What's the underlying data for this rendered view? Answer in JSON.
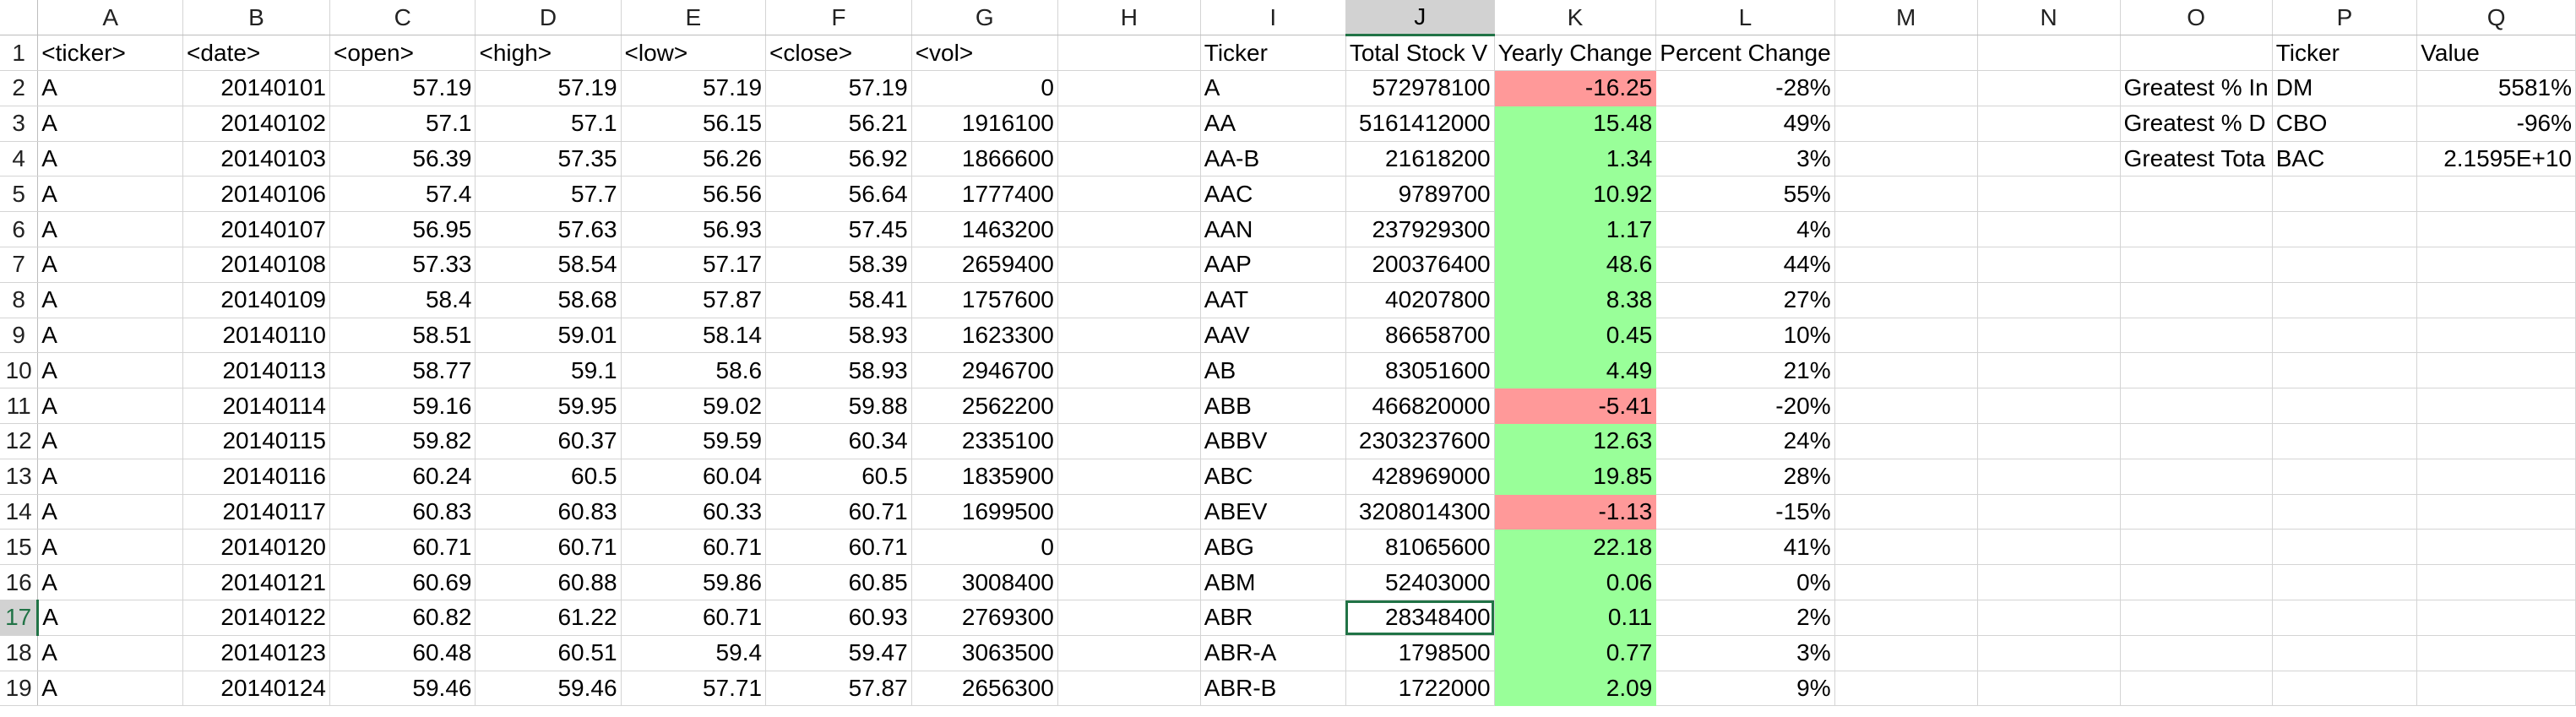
{
  "columns": [
    "A",
    "B",
    "C",
    "D",
    "E",
    "F",
    "G",
    "H",
    "I",
    "J",
    "K",
    "L",
    "M",
    "N",
    "O",
    "P",
    "Q"
  ],
  "selected_column": "J",
  "selected_row": 17,
  "selected_cell": "J17",
  "colors": {
    "positive": "#99ff99",
    "negative": "#ff9999",
    "select_accent": "#217346"
  },
  "rows": [
    {
      "n": 1,
      "A": "<ticker>",
      "B": "<date>",
      "C": "<open>",
      "D": "<high>",
      "E": "<low>",
      "F": "<close>",
      "G": "<vol>",
      "I": "Ticker",
      "J": "Total Stock V",
      "K": "Yearly Change",
      "L": "Percent Change",
      "P": "Ticker",
      "Q": "Value"
    },
    {
      "n": 2,
      "A": "A",
      "B": "20140101",
      "C": "57.19",
      "D": "57.19",
      "E": "57.19",
      "F": "57.19",
      "G": "0",
      "I": "A",
      "J": "572978100",
      "K": "-16.25",
      "L": "-28%",
      "O": "Greatest % In",
      "P": "DM",
      "Q": "5581%"
    },
    {
      "n": 3,
      "A": "A",
      "B": "20140102",
      "C": "57.1",
      "D": "57.1",
      "E": "56.15",
      "F": "56.21",
      "G": "1916100",
      "I": "AA",
      "J": "5161412000",
      "K": "15.48",
      "L": "49%",
      "O": "Greatest % D",
      "P": "CBO",
      "Q": "-96%"
    },
    {
      "n": 4,
      "A": "A",
      "B": "20140103",
      "C": "56.39",
      "D": "57.35",
      "E": "56.26",
      "F": "56.92",
      "G": "1866600",
      "I": "AA-B",
      "J": "21618200",
      "K": "1.34",
      "L": "3%",
      "O": "Greatest Tota",
      "P": "BAC",
      "Q": "2.1595E+10"
    },
    {
      "n": 5,
      "A": "A",
      "B": "20140106",
      "C": "57.4",
      "D": "57.7",
      "E": "56.56",
      "F": "56.64",
      "G": "1777400",
      "I": "AAC",
      "J": "9789700",
      "K": "10.92",
      "L": "55%"
    },
    {
      "n": 6,
      "A": "A",
      "B": "20140107",
      "C": "56.95",
      "D": "57.63",
      "E": "56.93",
      "F": "57.45",
      "G": "1463200",
      "I": "AAN",
      "J": "237929300",
      "K": "1.17",
      "L": "4%"
    },
    {
      "n": 7,
      "A": "A",
      "B": "20140108",
      "C": "57.33",
      "D": "58.54",
      "E": "57.17",
      "F": "58.39",
      "G": "2659400",
      "I": "AAP",
      "J": "200376400",
      "K": "48.6",
      "L": "44%"
    },
    {
      "n": 8,
      "A": "A",
      "B": "20140109",
      "C": "58.4",
      "D": "58.68",
      "E": "57.87",
      "F": "58.41",
      "G": "1757600",
      "I": "AAT",
      "J": "40207800",
      "K": "8.38",
      "L": "27%"
    },
    {
      "n": 9,
      "A": "A",
      "B": "20140110",
      "C": "58.51",
      "D": "59.01",
      "E": "58.14",
      "F": "58.93",
      "G": "1623300",
      "I": "AAV",
      "J": "86658700",
      "K": "0.45",
      "L": "10%"
    },
    {
      "n": 10,
      "A": "A",
      "B": "20140113",
      "C": "58.77",
      "D": "59.1",
      "E": "58.6",
      "F": "58.93",
      "G": "2946700",
      "I": "AB",
      "J": "83051600",
      "K": "4.49",
      "L": "21%"
    },
    {
      "n": 11,
      "A": "A",
      "B": "20140114",
      "C": "59.16",
      "D": "59.95",
      "E": "59.02",
      "F": "59.88",
      "G": "2562200",
      "I": "ABB",
      "J": "466820000",
      "K": "-5.41",
      "L": "-20%"
    },
    {
      "n": 12,
      "A": "A",
      "B": "20140115",
      "C": "59.82",
      "D": "60.37",
      "E": "59.59",
      "F": "60.34",
      "G": "2335100",
      "I": "ABBV",
      "J": "2303237600",
      "K": "12.63",
      "L": "24%"
    },
    {
      "n": 13,
      "A": "A",
      "B": "20140116",
      "C": "60.24",
      "D": "60.5",
      "E": "60.04",
      "F": "60.5",
      "G": "1835900",
      "I": "ABC",
      "J": "428969000",
      "K": "19.85",
      "L": "28%"
    },
    {
      "n": 14,
      "A": "A",
      "B": "20140117",
      "C": "60.83",
      "D": "60.83",
      "E": "60.33",
      "F": "60.71",
      "G": "1699500",
      "I": "ABEV",
      "J": "3208014300",
      "K": "-1.13",
      "L": "-15%"
    },
    {
      "n": 15,
      "A": "A",
      "B": "20140120",
      "C": "60.71",
      "D": "60.71",
      "E": "60.71",
      "F": "60.71",
      "G": "0",
      "I": "ABG",
      "J": "81065600",
      "K": "22.18",
      "L": "41%"
    },
    {
      "n": 16,
      "A": "A",
      "B": "20140121",
      "C": "60.69",
      "D": "60.88",
      "E": "59.86",
      "F": "60.85",
      "G": "3008400",
      "I": "ABM",
      "J": "52403000",
      "K": "0.06",
      "L": "0%"
    },
    {
      "n": 17,
      "A": "A",
      "B": "20140122",
      "C": "60.82",
      "D": "61.22",
      "E": "60.71",
      "F": "60.93",
      "G": "2769300",
      "I": "ABR",
      "J": "28348400",
      "K": "0.11",
      "L": "2%"
    },
    {
      "n": 18,
      "A": "A",
      "B": "20140123",
      "C": "60.48",
      "D": "60.51",
      "E": "59.4",
      "F": "59.47",
      "G": "3063500",
      "I": "ABR-A",
      "J": "1798500",
      "K": "0.77",
      "L": "3%"
    },
    {
      "n": 19,
      "A": "A",
      "B": "20140124",
      "C": "59.46",
      "D": "59.46",
      "E": "57.71",
      "F": "57.87",
      "G": "2656300",
      "I": "ABR-B",
      "J": "1722000",
      "K": "2.09",
      "L": "9%"
    }
  ]
}
